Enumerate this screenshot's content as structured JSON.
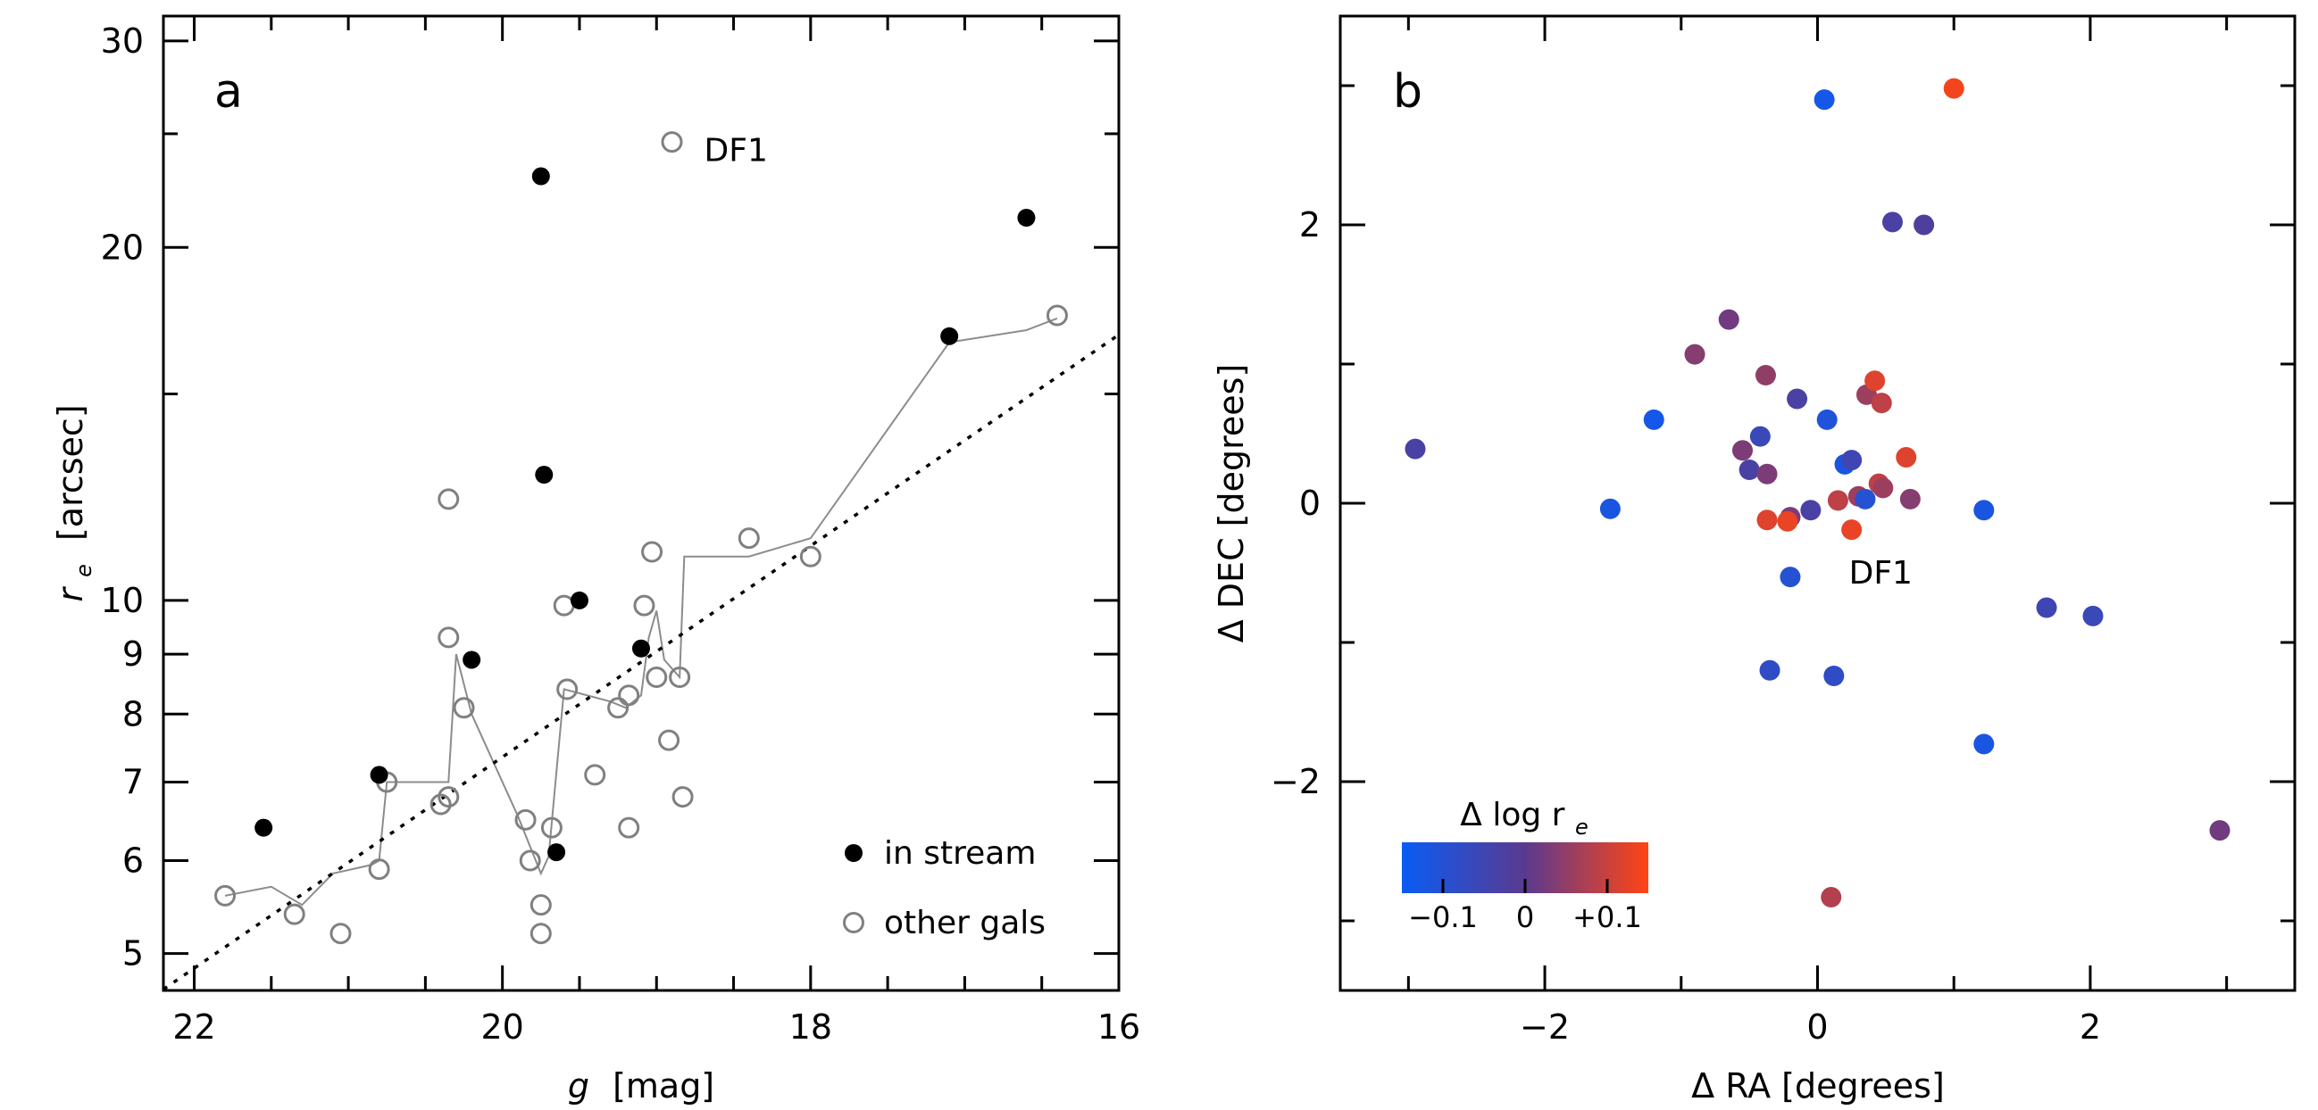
{
  "chart_data": [
    {
      "panel_label": "a",
      "type": "scatter",
      "xlabel_italic": "g",
      "xlabel_rest": "[mag]",
      "ylabel_italic": "r",
      "ylabel_sub": "e",
      "ylabel_rest": "[arcsec]",
      "xlim": [
        22.2,
        16.0
      ],
      "ylim": [
        4.65,
        31.5
      ],
      "yscale": "log",
      "xticks": [
        {
          "value": 22,
          "label": "22"
        },
        {
          "value": 20,
          "label": "20"
        },
        {
          "value": 18,
          "label": "18"
        },
        {
          "value": 16,
          "label": "16"
        }
      ],
      "yticks": [
        {
          "value": 5,
          "label": "5"
        },
        {
          "value": 6,
          "label": "6"
        },
        {
          "value": 7,
          "label": "7"
        },
        {
          "value": 8,
          "label": "8"
        },
        {
          "value": 9,
          "label": "9"
        },
        {
          "value": 10,
          "label": "10"
        },
        {
          "value": 20,
          "label": "20"
        },
        {
          "value": 30,
          "label": "30"
        }
      ],
      "legend": [
        {
          "label": "in stream",
          "style": "filled"
        },
        {
          "label": "other gals",
          "style": "open"
        }
      ],
      "annotation": {
        "text": "DF1",
        "x": 18.9,
        "y": 24.2
      },
      "series": [
        {
          "name": "in stream",
          "color": "#000000",
          "points": [
            [
              21.55,
              6.4
            ],
            [
              20.8,
              7.1
            ],
            [
              20.2,
              8.9
            ],
            [
              19.75,
              23.0
            ],
            [
              19.73,
              12.8
            ],
            [
              19.65,
              6.1
            ],
            [
              19.5,
              10.0
            ],
            [
              19.1,
              9.1
            ],
            [
              17.1,
              16.8
            ],
            [
              16.6,
              21.2
            ]
          ]
        },
        {
          "name": "other gals",
          "color": "#808080",
          "points": [
            [
              21.8,
              5.6
            ],
            [
              21.35,
              5.4
            ],
            [
              21.05,
              5.2
            ],
            [
              20.8,
              5.9
            ],
            [
              20.75,
              7.0
            ],
            [
              20.35,
              12.2
            ],
            [
              20.35,
              9.3
            ],
            [
              20.4,
              6.7
            ],
            [
              20.35,
              6.8
            ],
            [
              20.25,
              8.1
            ],
            [
              19.85,
              6.5
            ],
            [
              19.82,
              6.0
            ],
            [
              19.75,
              5.5
            ],
            [
              19.75,
              5.2
            ],
            [
              19.68,
              6.4
            ],
            [
              19.6,
              9.9
            ],
            [
              19.58,
              8.4
            ],
            [
              19.4,
              7.1
            ],
            [
              19.25,
              8.1
            ],
            [
              19.18,
              8.3
            ],
            [
              19.18,
              6.4
            ],
            [
              19.08,
              9.9
            ],
            [
              19.03,
              11.0
            ],
            [
              19.0,
              8.6
            ],
            [
              18.92,
              7.6
            ],
            [
              18.9,
              24.6
            ],
            [
              18.85,
              8.6
            ],
            [
              18.83,
              6.8
            ],
            [
              18.4,
              11.3
            ],
            [
              18.0,
              10.9
            ],
            [
              16.4,
              17.5
            ]
          ]
        },
        {
          "name": "running median",
          "color": "#8c8c8c",
          "points": [
            [
              21.8,
              5.6
            ],
            [
              21.5,
              5.7
            ],
            [
              21.3,
              5.5
            ],
            [
              21.1,
              5.85
            ],
            [
              20.85,
              5.95
            ],
            [
              20.8,
              6.0
            ],
            [
              20.75,
              7.0
            ],
            [
              20.35,
              7.0
            ],
            [
              20.3,
              9.0
            ],
            [
              20.2,
              8.0
            ],
            [
              19.9,
              6.55
            ],
            [
              19.75,
              5.85
            ],
            [
              19.7,
              6.05
            ],
            [
              19.6,
              8.4
            ],
            [
              19.3,
              8.2
            ],
            [
              19.2,
              8.1
            ],
            [
              19.1,
              8.3
            ],
            [
              19.05,
              9.3
            ],
            [
              19.0,
              9.8
            ],
            [
              18.95,
              8.9
            ],
            [
              18.85,
              8.6
            ],
            [
              18.82,
              10.9
            ],
            [
              18.4,
              10.9
            ],
            [
              18.0,
              11.3
            ],
            [
              17.1,
              16.6
            ],
            [
              16.6,
              17.0
            ],
            [
              16.4,
              17.4
            ]
          ]
        },
        {
          "name": "fit",
          "style": "dotted",
          "points": [
            [
              22.2,
              4.66
            ],
            [
              16.0,
              16.85
            ]
          ]
        }
      ]
    },
    {
      "panel_label": "b",
      "type": "scatter",
      "xlabel": "Δ RA  [degrees]",
      "ylabel": "Δ DEC  [degrees]",
      "xlim": [
        -3.5,
        3.5
      ],
      "ylim": [
        -3.5,
        3.5
      ],
      "xticks": [
        {
          "value": -2,
          "label": "−2"
        },
        {
          "value": 0,
          "label": "0"
        },
        {
          "value": 2,
          "label": "2"
        }
      ],
      "yticks": [
        {
          "value": -2,
          "label": "−2"
        },
        {
          "value": 0,
          "label": "0"
        },
        {
          "value": 2,
          "label": "2"
        }
      ],
      "annotation": {
        "text": "DF1",
        "x": 0.23,
        "y": -0.5
      },
      "colorbar": {
        "title": "Δ log r",
        "title_sub": "e",
        "range": [
          -0.15,
          0.15
        ],
        "colors": [
          "#0a5cf5",
          "#5a3a90",
          "#ff4514"
        ],
        "ticks": [
          {
            "value": -0.1,
            "label": "−0.1"
          },
          {
            "value": 0,
            "label": "0"
          },
          {
            "value": 0.1,
            "label": "+0.1"
          }
        ]
      },
      "points": [
        {
          "x": 0.05,
          "y": 2.9,
          "c": -0.13
        },
        {
          "x": 1.0,
          "y": 2.98,
          "c": 0.14
        },
        {
          "x": 0.55,
          "y": 2.02,
          "c": -0.03
        },
        {
          "x": 0.78,
          "y": 2.0,
          "c": -0.02
        },
        {
          "x": -0.65,
          "y": 1.32,
          "c": 0.02
        },
        {
          "x": -0.9,
          "y": 1.07,
          "c": 0.04
        },
        {
          "x": -1.2,
          "y": 0.6,
          "c": -0.13
        },
        {
          "x": -0.38,
          "y": 0.92,
          "c": 0.05
        },
        {
          "x": -0.15,
          "y": 0.75,
          "c": -0.03
        },
        {
          "x": 0.07,
          "y": 0.6,
          "c": -0.11
        },
        {
          "x": 0.36,
          "y": 0.78,
          "c": 0.06
        },
        {
          "x": 0.42,
          "y": 0.88,
          "c": 0.12
        },
        {
          "x": 0.47,
          "y": 0.72,
          "c": 0.09
        },
        {
          "x": -2.95,
          "y": 0.39,
          "c": -0.03
        },
        {
          "x": -0.42,
          "y": 0.48,
          "c": -0.06
        },
        {
          "x": -0.55,
          "y": 0.38,
          "c": 0.03
        },
        {
          "x": -0.5,
          "y": 0.24,
          "c": -0.03
        },
        {
          "x": -0.37,
          "y": 0.21,
          "c": 0.03
        },
        {
          "x": 0.2,
          "y": 0.28,
          "c": -0.12
        },
        {
          "x": 0.25,
          "y": 0.31,
          "c": -0.05
        },
        {
          "x": 0.65,
          "y": 0.33,
          "c": 0.12
        },
        {
          "x": 0.45,
          "y": 0.14,
          "c": 0.09
        },
        {
          "x": 0.48,
          "y": 0.11,
          "c": 0.06
        },
        {
          "x": 0.3,
          "y": 0.05,
          "c": 0.06
        },
        {
          "x": 0.35,
          "y": 0.03,
          "c": -0.1
        },
        {
          "x": 0.68,
          "y": 0.03,
          "c": 0.04
        },
        {
          "x": 0.15,
          "y": 0.02,
          "c": 0.09
        },
        {
          "x": -0.05,
          "y": -0.05,
          "c": -0.03
        },
        {
          "x": -0.2,
          "y": -0.1,
          "c": 0.03
        },
        {
          "x": -0.22,
          "y": -0.13,
          "c": 0.13
        },
        {
          "x": -0.37,
          "y": -0.12,
          "c": 0.12
        },
        {
          "x": 0.25,
          "y": -0.19,
          "c": 0.13
        },
        {
          "x": -1.52,
          "y": -0.04,
          "c": -0.12
        },
        {
          "x": 1.22,
          "y": -0.05,
          "c": -0.12
        },
        {
          "x": -0.2,
          "y": -0.53,
          "c": -0.1
        },
        {
          "x": -0.35,
          "y": -1.2,
          "c": -0.08
        },
        {
          "x": 0.12,
          "y": -1.24,
          "c": -0.08
        },
        {
          "x": 1.22,
          "y": -1.73,
          "c": -0.12
        },
        {
          "x": 1.68,
          "y": -0.75,
          "c": -0.05
        },
        {
          "x": 2.02,
          "y": -0.81,
          "c": -0.06
        },
        {
          "x": 0.1,
          "y": -2.83,
          "c": 0.08
        },
        {
          "x": 2.95,
          "y": -2.35,
          "c": 0.02
        }
      ]
    }
  ]
}
